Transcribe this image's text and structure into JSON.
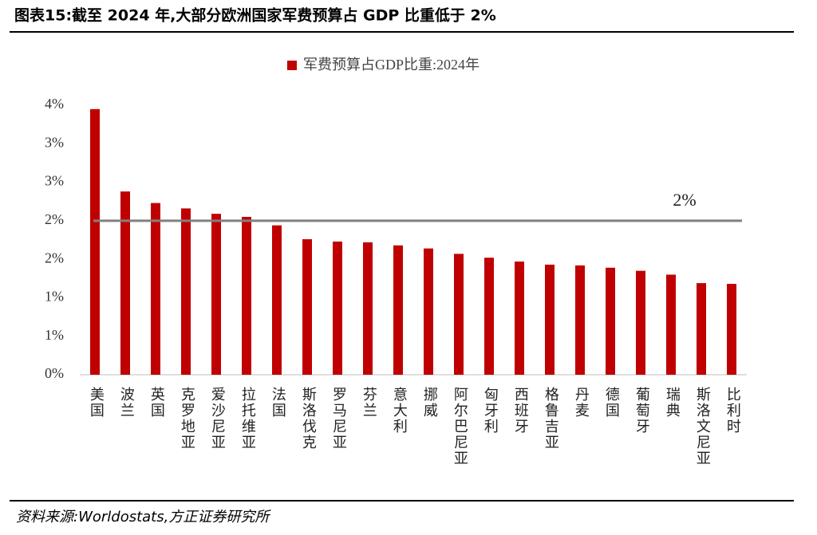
{
  "header": {
    "title": "图表15:截至 2024 年,大部分欧洲国家军费预算占 GDP 比重低于 2%"
  },
  "chart_data": {
    "type": "bar",
    "categories": [
      "美国",
      "波兰",
      "英国",
      "克罗地亚",
      "爱沙尼亚",
      "拉托维亚",
      "法国",
      "斯洛伐克",
      "罗马尼亚",
      "芬兰",
      "意大利",
      "挪威",
      "阿尔巴尼亚",
      "匈牙利",
      "西班牙",
      "格鲁吉亚",
      "丹麦",
      "德国",
      "葡萄牙",
      "瑞典",
      "斯洛文尼亚",
      "比利时"
    ],
    "series": [
      {
        "name": "军费预算占GDP比重:2024年",
        "color": "#c00000",
        "values": [
          3.45,
          2.38,
          2.23,
          2.16,
          2.09,
          2.05,
          1.94,
          1.76,
          1.73,
          1.72,
          1.68,
          1.64,
          1.57,
          1.52,
          1.47,
          1.43,
          1.42,
          1.39,
          1.35,
          1.3,
          1.19,
          1.18
        ]
      }
    ],
    "ylim": [
      0,
      3.5
    ],
    "yticks": [
      {
        "value": 0,
        "label": "0%"
      },
      {
        "value": 0.5,
        "label": "1%"
      },
      {
        "value": 1,
        "label": "1%"
      },
      {
        "value": 1.5,
        "label": "2%"
      },
      {
        "value": 2,
        "label": "2%"
      },
      {
        "value": 2.5,
        "label": "3%"
      },
      {
        "value": 3,
        "label": "3%"
      },
      {
        "value": 3.5,
        "label": "4%"
      }
    ],
    "reference_line": {
      "value": 2,
      "label": "2%",
      "color": "#808080"
    }
  },
  "footer": {
    "source": "资料来源:Worldostats,方正证券研究所"
  }
}
